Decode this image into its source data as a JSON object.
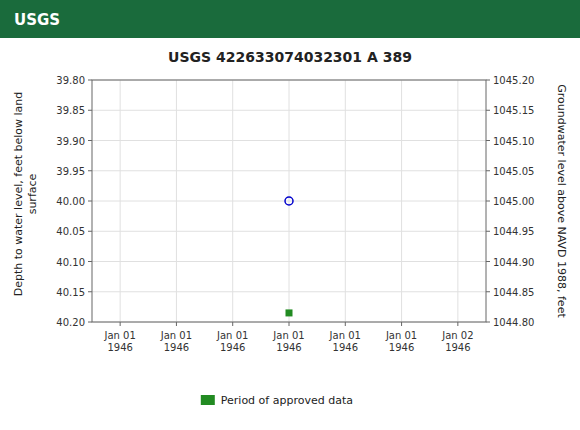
{
  "chart_data": {
    "type": "scatter",
    "title": "USGS 422633074032301 A 389",
    "annotations": [
      "USGS"
    ],
    "ylabel": "Depth to water level, feet below land\nsurface",
    "y2label": "Groundwater level above NAVD 1988, feet",
    "categories": [
      "Jan 01\n1946",
      "Jan 01\n1946",
      "Jan 01\n1946",
      "Jan 01\n1946",
      "Jan 01\n1946",
      "Jan 01\n1946",
      "Jan 02\n1946"
    ],
    "series": [
      {
        "color": "#0000cc",
        "marker": "open_circle",
        "values": [
          null,
          null,
          null,
          40.0,
          null,
          null,
          null
        ]
      },
      {
        "name": "Period of approved data",
        "color": "#228B22",
        "marker": "square",
        "values": [
          null,
          null,
          null,
          40.185,
          null,
          null,
          null
        ]
      }
    ],
    "ylim": [
      40.2,
      39.8
    ],
    "yticks": [
      {
        "value": 39.8,
        "label": "39.80"
      },
      {
        "value": 39.85,
        "label": "39.85"
      },
      {
        "value": 39.9,
        "label": "39.90"
      },
      {
        "value": 39.95,
        "label": "39.95"
      },
      {
        "value": 40.0,
        "label": "40.00"
      },
      {
        "value": 40.05,
        "label": "40.05"
      },
      {
        "value": 40.1,
        "label": "40.10"
      },
      {
        "value": 40.15,
        "label": "40.15"
      },
      {
        "value": 40.2,
        "label": "40.20"
      }
    ],
    "y2lim": [
      1044.8,
      1045.2
    ],
    "y2ticks": [
      {
        "value": 1045.2,
        "label": "1045.20"
      },
      {
        "value": 1045.15,
        "label": "1045.15"
      },
      {
        "value": 1045.1,
        "label": "1045.10"
      },
      {
        "value": 1045.05,
        "label": "1045.05"
      },
      {
        "value": 1045.0,
        "label": "1045.00"
      },
      {
        "value": 1044.95,
        "label": "1044.95"
      },
      {
        "value": 1044.9,
        "label": "1044.90"
      },
      {
        "value": 1044.85,
        "label": "1044.85"
      },
      {
        "value": 1044.8,
        "label": "1044.80"
      }
    ],
    "grid": true,
    "legend": "bottom"
  }
}
